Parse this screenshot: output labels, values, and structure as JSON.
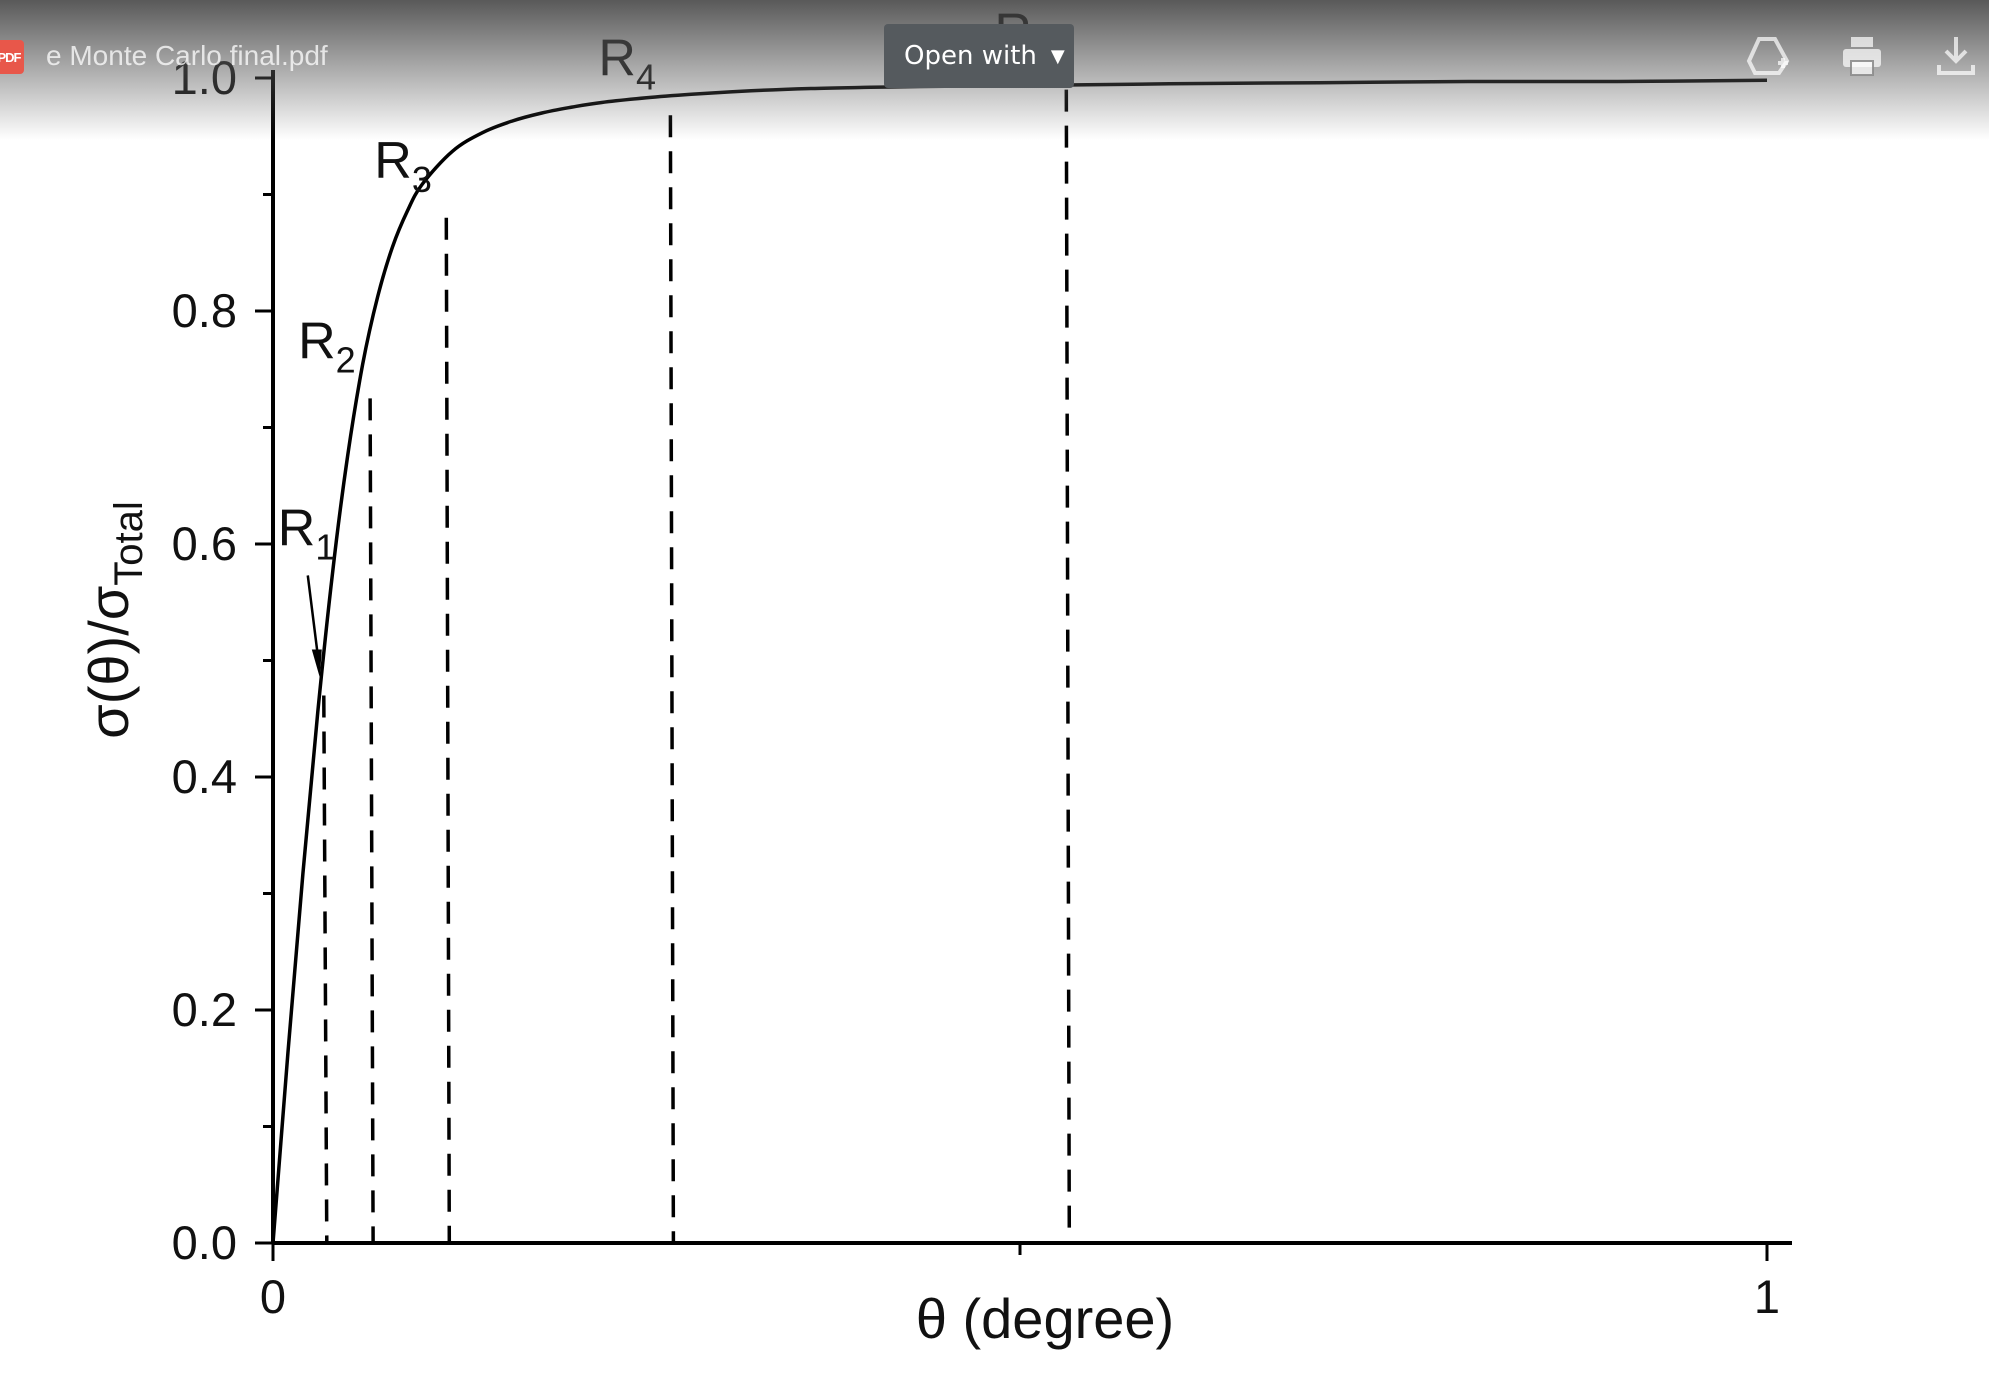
{
  "viewer": {
    "file_name": "e Monte Carlo final.pdf",
    "badge": "PDF",
    "open_with_label": "Open with",
    "icons": [
      "add-to-drive-icon",
      "print-icon",
      "download-icon"
    ]
  },
  "chart_data": {
    "type": "line",
    "title": "",
    "xlabel": "θ (degree)",
    "ylabel_main": "σ(θ)/σ",
    "ylabel_sub": "Total",
    "xlim": [
      0,
      1
    ],
    "ylim": [
      0,
      1
    ],
    "x_ticks": [
      0,
      1
    ],
    "x_tick_labels": [
      "0",
      "1"
    ],
    "x_minor_ticks": [
      0.5
    ],
    "y_ticks": [
      0.0,
      0.2,
      0.4,
      0.6,
      0.8,
      1.0
    ],
    "y_tick_labels": [
      "0.0",
      "0.2",
      "0.4",
      "0.6",
      "0.8",
      "1.0"
    ],
    "y_minor_ticks": [
      0.1,
      0.3,
      0.5,
      0.7,
      0.9
    ],
    "grid": false,
    "series": [
      {
        "x": [
          0,
          0.01,
          0.02,
          0.03,
          0.04,
          0.05,
          0.06,
          0.07,
          0.08,
          0.09,
          0.1,
          0.12,
          0.14,
          0.16,
          0.18,
          0.2,
          0.22,
          0.25,
          0.28,
          0.32,
          0.36,
          0.4,
          0.45,
          0.5,
          0.53,
          0.6,
          0.7,
          0.8,
          0.9,
          1.0
        ],
        "y": [
          0,
          0.163,
          0.317,
          0.456,
          0.577,
          0.676,
          0.754,
          0.812,
          0.855,
          0.886,
          0.909,
          0.937,
          0.953,
          0.963,
          0.97,
          0.975,
          0.979,
          0.983,
          0.986,
          0.989,
          0.991,
          0.992,
          0.993,
          0.994,
          0.994,
          0.995,
          0.996,
          0.997,
          0.997,
          0.998
        ]
      }
    ],
    "markers": [
      {
        "label": "R",
        "sub": "1",
        "x": 0.034,
        "y": 0.47,
        "arrow": true
      },
      {
        "label": "R",
        "sub": "2",
        "x": 0.065,
        "y": 0.725
      },
      {
        "label": "R",
        "sub": "3",
        "x": 0.116,
        "y": 0.88
      },
      {
        "label": "R",
        "sub": "4",
        "x": 0.266,
        "y": 0.968
      },
      {
        "label": "R",
        "sub": "5",
        "x": 0.531,
        "y": 0.99
      }
    ]
  }
}
